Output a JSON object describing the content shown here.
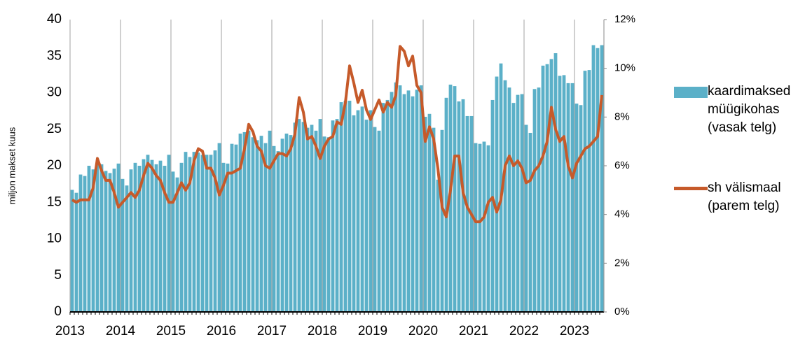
{
  "chart_data": {
    "type": "bar-line",
    "y_label": "miljon makset kuus",
    "categories": [
      "2013",
      null,
      null,
      null,
      null,
      null,
      null,
      null,
      null,
      null,
      null,
      null,
      "2014",
      null,
      null,
      null,
      null,
      null,
      null,
      null,
      null,
      null,
      null,
      null,
      "2015",
      null,
      null,
      null,
      null,
      null,
      null,
      null,
      null,
      null,
      null,
      null,
      "2016",
      null,
      null,
      null,
      null,
      null,
      null,
      null,
      null,
      null,
      null,
      null,
      "2017",
      null,
      null,
      null,
      null,
      null,
      null,
      null,
      null,
      null,
      null,
      null,
      "2018",
      null,
      null,
      null,
      null,
      null,
      null,
      null,
      null,
      null,
      null,
      null,
      "2019",
      null,
      null,
      null,
      null,
      null,
      null,
      null,
      null,
      null,
      null,
      null,
      "2020",
      null,
      null,
      null,
      null,
      null,
      null,
      null,
      null,
      null,
      null,
      null,
      "2021",
      null,
      null,
      null,
      null,
      null,
      null,
      null,
      null,
      null,
      null,
      null,
      "2022",
      null,
      null,
      null,
      null,
      null,
      null,
      null,
      null,
      null,
      null,
      null,
      "2023",
      null,
      null,
      null,
      null,
      null,
      null
    ],
    "series": [
      {
        "name": "kaardimaksed müügikohas (vasak telg)",
        "type": "bar",
        "color": "#5bb0c8",
        "values": [
          16.7,
          16.3,
          18.8,
          18.6,
          20.0,
          19.5,
          20.5,
          20.2,
          19.3,
          19.0,
          19.6,
          20.3,
          18.2,
          17.3,
          19.5,
          20.4,
          20.0,
          20.9,
          21.5,
          20.8,
          20.2,
          20.7,
          20.0,
          21.5,
          19.2,
          18.4,
          20.4,
          21.9,
          21.2,
          21.9,
          21.8,
          21.5,
          21.5,
          21.5,
          22.1,
          23.1,
          20.4,
          20.3,
          23.0,
          22.9,
          24.4,
          24.6,
          24.8,
          23.9,
          23.5,
          24.1,
          23.1,
          24.8,
          22.7,
          22.0,
          23.7,
          24.4,
          24.2,
          25.9,
          26.4,
          26.0,
          25.2,
          25.6,
          24.8,
          26.4,
          24.0,
          23.9,
          26.2,
          26.4,
          28.7,
          28.9,
          28.9,
          26.9,
          27.6,
          28.1,
          26.3,
          27.6,
          25.3,
          24.8,
          28.6,
          29.0,
          30.1,
          31.4,
          31.0,
          29.8,
          30.3,
          29.5,
          30.4,
          31.0,
          26.7,
          27.1,
          25.2,
          18.1,
          24.9,
          29.3,
          31.1,
          30.9,
          28.8,
          29.1,
          26.8,
          26.8,
          23.1,
          23.0,
          23.3,
          22.8,
          29.0,
          32.2,
          34.0,
          31.7,
          30.7,
          28.6,
          29.7,
          29.8,
          25.6,
          24.5,
          30.5,
          30.7,
          33.7,
          33.9,
          34.6,
          35.4,
          32.3,
          32.4,
          31.3,
          31.3,
          28.5,
          28.3,
          33.0,
          33.1,
          36.5,
          36.1,
          36.5
        ]
      },
      {
        "name": "sh välismaal (parem telg)",
        "type": "line",
        "axis": "y2",
        "color": "#c65a2a",
        "values": [
          4.6,
          4.5,
          4.6,
          4.6,
          4.6,
          5.1,
          6.3,
          5.8,
          5.4,
          5.4,
          4.9,
          4.3,
          4.5,
          4.7,
          4.9,
          4.7,
          5.0,
          5.6,
          6.1,
          5.9,
          5.6,
          5.4,
          4.9,
          4.5,
          4.5,
          4.9,
          5.3,
          5.0,
          5.3,
          6.2,
          6.7,
          6.6,
          5.9,
          5.9,
          5.5,
          4.8,
          5.2,
          5.7,
          5.7,
          5.8,
          5.9,
          6.7,
          7.7,
          7.4,
          6.8,
          6.6,
          6.0,
          5.9,
          6.2,
          6.5,
          6.5,
          6.4,
          6.7,
          7.3,
          8.8,
          8.2,
          7.1,
          7.2,
          6.8,
          6.3,
          6.8,
          7.1,
          7.2,
          7.8,
          7.7,
          8.6,
          10.1,
          9.4,
          8.6,
          9.1,
          8.3,
          7.9,
          8.3,
          8.7,
          8.2,
          8.6,
          8.4,
          8.9,
          10.9,
          10.7,
          10.1,
          10.5,
          9.3,
          9.0,
          7.0,
          7.6,
          7.1,
          5.9,
          4.3,
          3.9,
          5.0,
          6.4,
          6.4,
          4.9,
          4.3,
          4.0,
          3.7,
          3.7,
          3.9,
          4.5,
          4.7,
          4.1,
          4.6,
          6.0,
          6.4,
          6.0,
          6.2,
          5.9,
          5.3,
          5.4,
          5.8,
          6.0,
          6.4,
          7.0,
          8.4,
          7.5,
          7.0,
          7.2,
          6.0,
          5.5,
          6.1,
          6.4,
          6.7,
          6.8,
          7.0,
          7.2,
          8.9
        ]
      }
    ],
    "ylim": [
      0,
      40
    ],
    "yticks": [
      0,
      5,
      10,
      15,
      20,
      25,
      30,
      35,
      40
    ],
    "y2lim": [
      0,
      12
    ],
    "y2ticks": [
      {
        "value": 0,
        "label": "0%"
      },
      {
        "value": 2,
        "label": "2%"
      },
      {
        "value": 4,
        "label": "4%"
      },
      {
        "value": 6,
        "label": "6%"
      },
      {
        "value": 8,
        "label": "8%"
      },
      {
        "value": 10,
        "label": "10%"
      },
      {
        "value": 12,
        "label": "12%"
      }
    ],
    "grid": "x",
    "legend": "right"
  }
}
